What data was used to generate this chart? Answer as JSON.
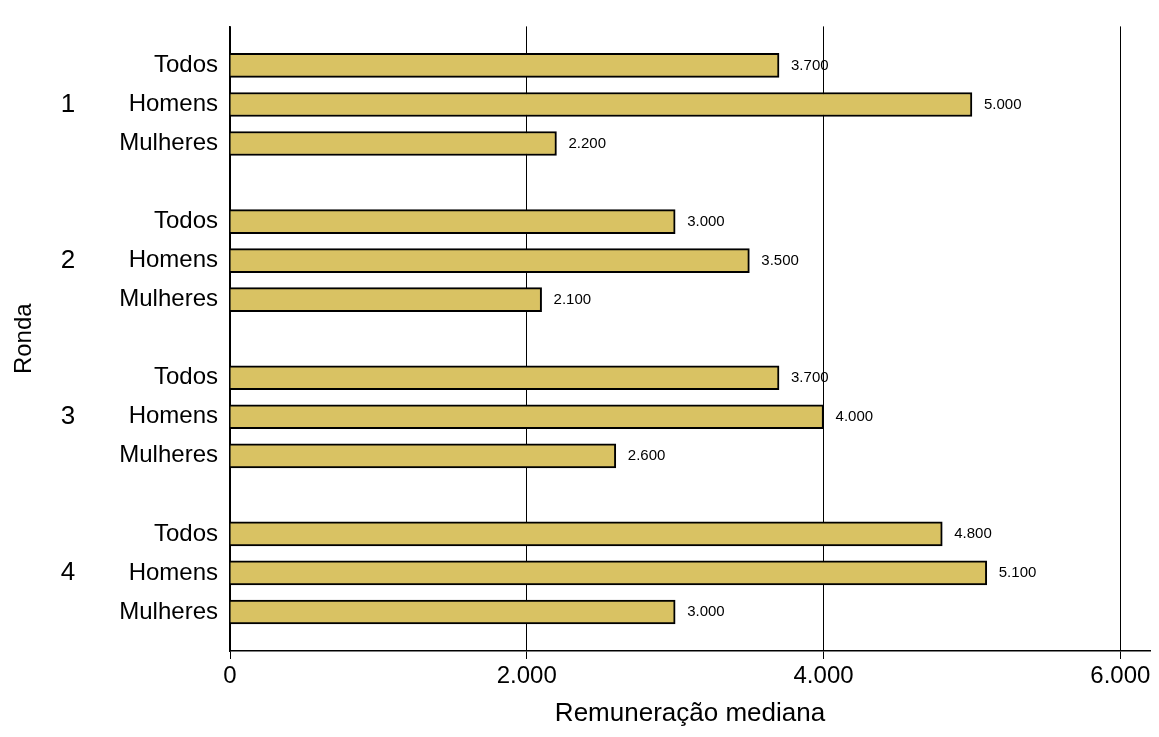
{
  "chart_data": {
    "type": "bar",
    "orientation": "horizontal",
    "xlabel": "Remuneração mediana",
    "ylabel": "Ronda",
    "categories": [
      null,
      "Todos",
      "Homens",
      "Mulheres",
      null,
      "Todos",
      "Homens",
      "Mulheres",
      null,
      "Todos",
      "Homens",
      "Mulheres",
      null,
      "Todos",
      "Homens",
      "Mulheres",
      null
    ],
    "values": [
      null,
      3700,
      5000,
      2200,
      null,
      3000,
      3500,
      2100,
      null,
      3700,
      4000,
      2600,
      null,
      4800,
      5100,
      3000,
      null
    ],
    "value_labels": [
      null,
      "3.700",
      "5.000",
      "2.200",
      null,
      "3.000",
      "3.500",
      "2.100",
      null,
      "3.700",
      "4.000",
      "2.600",
      null,
      "4.800",
      "5.100",
      "3.000",
      null
    ],
    "color": "#d9c263",
    "annotations": [
      "1",
      "2",
      "3",
      "4"
    ],
    "xlim": [
      0,
      6200
    ],
    "xticks": [
      0,
      {
        "value": 2000,
        "label": "2.000"
      },
      {
        "value": 4000,
        "label": "4.000"
      },
      {
        "value": 6000,
        "label": "6.000"
      }
    ],
    "grid": "x",
    "legend": false
  }
}
